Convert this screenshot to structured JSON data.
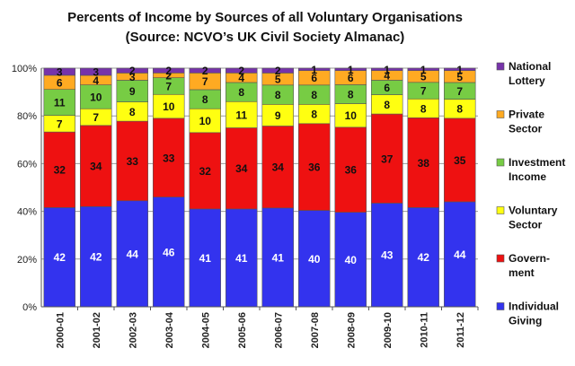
{
  "chart_data": {
    "type": "bar",
    "stacked": true,
    "title": "Percents of Income by Sources of all Voluntary Organisations",
    "subtitle": "(Source: NCVO’s UK Civil Society Almanac)",
    "xlabel": "",
    "ylabel": "",
    "ylim": [
      0,
      100
    ],
    "yticks": [
      "0%",
      "20%",
      "40%",
      "60%",
      "80%",
      "100%"
    ],
    "grid": true,
    "legend_position": "right",
    "categories": [
      "2000-01",
      "2001-02",
      "2002-03",
      "2003-04",
      "2004-05",
      "2005-06",
      "2006-07",
      "2007-08",
      "2008-09",
      "2009-10",
      "2010-11",
      "2011-12"
    ],
    "series": [
      {
        "name": "Individual Giving",
        "legend_lines": [
          "Individual",
          "Giving"
        ],
        "color": "#3333ee",
        "label_color": "#ffffff",
        "values": [
          42,
          42,
          44,
          46,
          41,
          41,
          41,
          40,
          40,
          43,
          42,
          44
        ]
      },
      {
        "name": "Govern-ment",
        "legend_lines": [
          "Govern-",
          "ment"
        ],
        "color": "#ee1111",
        "label_color": "#111111",
        "values": [
          32,
          34,
          33,
          33,
          32,
          34,
          34,
          36,
          36,
          37,
          38,
          35
        ]
      },
      {
        "name": "Voluntary Sector",
        "legend_lines": [
          "Voluntary",
          "Sector"
        ],
        "color": "#ffff11",
        "label_color": "#111111",
        "values": [
          7,
          7,
          8,
          10,
          10,
          11,
          9,
          8,
          10,
          8,
          8,
          8
        ]
      },
      {
        "name": "Investment Income",
        "legend_lines": [
          "Investment",
          "Income"
        ],
        "color": "#77cc44",
        "label_color": "#111111",
        "values": [
          11,
          10,
          9,
          7,
          8,
          8,
          8,
          8,
          8,
          6,
          7,
          7
        ]
      },
      {
        "name": "Private Sector",
        "legend_lines": [
          "Private",
          "Sector"
        ],
        "color": "#ffaa22",
        "label_color": "#111111",
        "values": [
          6,
          4,
          3,
          2,
          7,
          4,
          5,
          6,
          6,
          4,
          5,
          5
        ]
      },
      {
        "name": "National Lottery",
        "legend_lines": [
          "National",
          "Lottery"
        ],
        "color": "#7733aa",
        "label_color": "#111111",
        "values": [
          3,
          3,
          2,
          2,
          2,
          2,
          2,
          1,
          1,
          1,
          1,
          1
        ]
      }
    ]
  }
}
